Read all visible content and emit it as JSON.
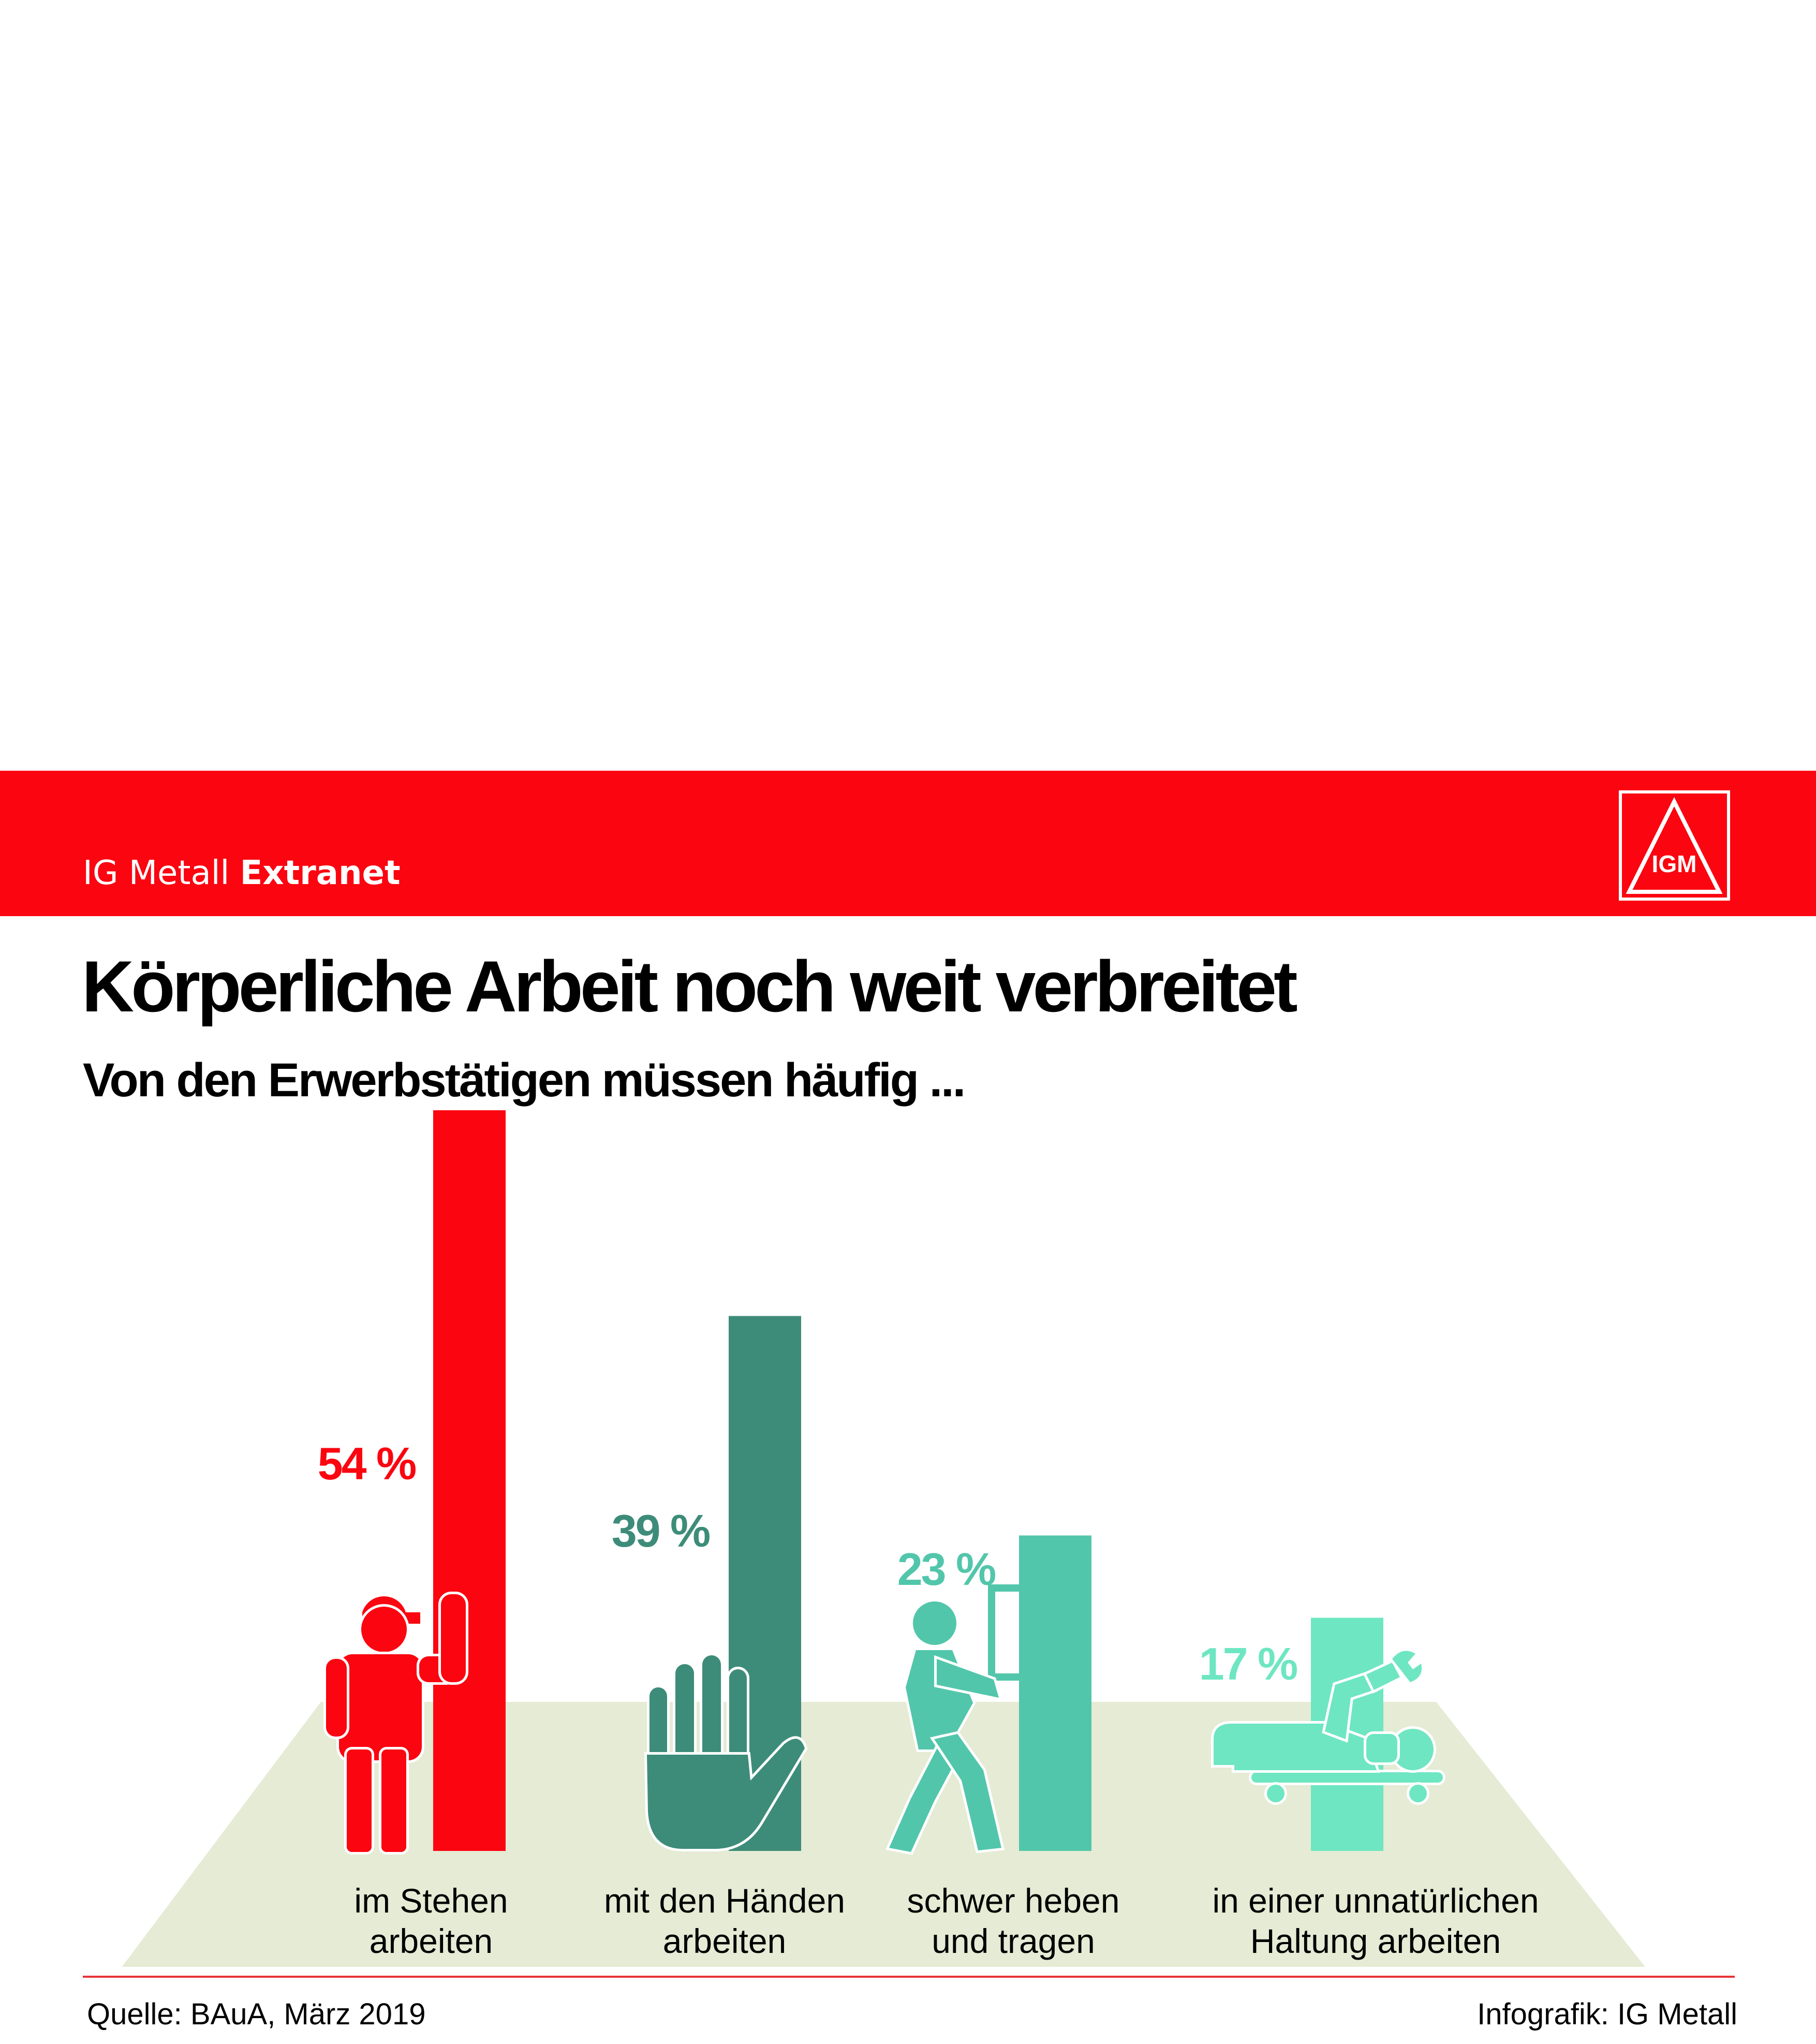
{
  "header": {
    "brand_regular": "IG Metall",
    "brand_bold": "Extranet",
    "logo_icon": "ig-metall-logo-icon",
    "logo_text": "IGM",
    "color": "#fb0510"
  },
  "chart_data": {
    "type": "bar",
    "title": "Körperliche Arbeit noch weit verbreitet",
    "subtitle": "Von den Erwerbstätigen müssen häufig ...",
    "categories": [
      [
        "im Stehen",
        "arbeiten"
      ],
      [
        "mit den Händen",
        "arbeiten"
      ],
      [
        "schwer heben",
        "und tragen"
      ],
      [
        "in einer unnatürlichen",
        "Haltung arbeiten"
      ]
    ],
    "values": [
      54,
      39,
      23,
      17
    ],
    "value_labels": [
      "54 %",
      "39 %",
      "23 %",
      "17 %"
    ],
    "unit": "%",
    "colors": [
      "#fb0510",
      "#3d8c79",
      "#52c6ab",
      "#6ee6c1"
    ],
    "icons": [
      "standing-worker-icon",
      "hand-icon",
      "carrying-box-icon",
      "lying-mechanic-icon"
    ],
    "floor_color": "#e5ebd4",
    "grid": false,
    "legend": "none"
  },
  "footer": {
    "source": "Quelle: BAuA, März 2019",
    "credit": "Infografik: IG Metall"
  }
}
